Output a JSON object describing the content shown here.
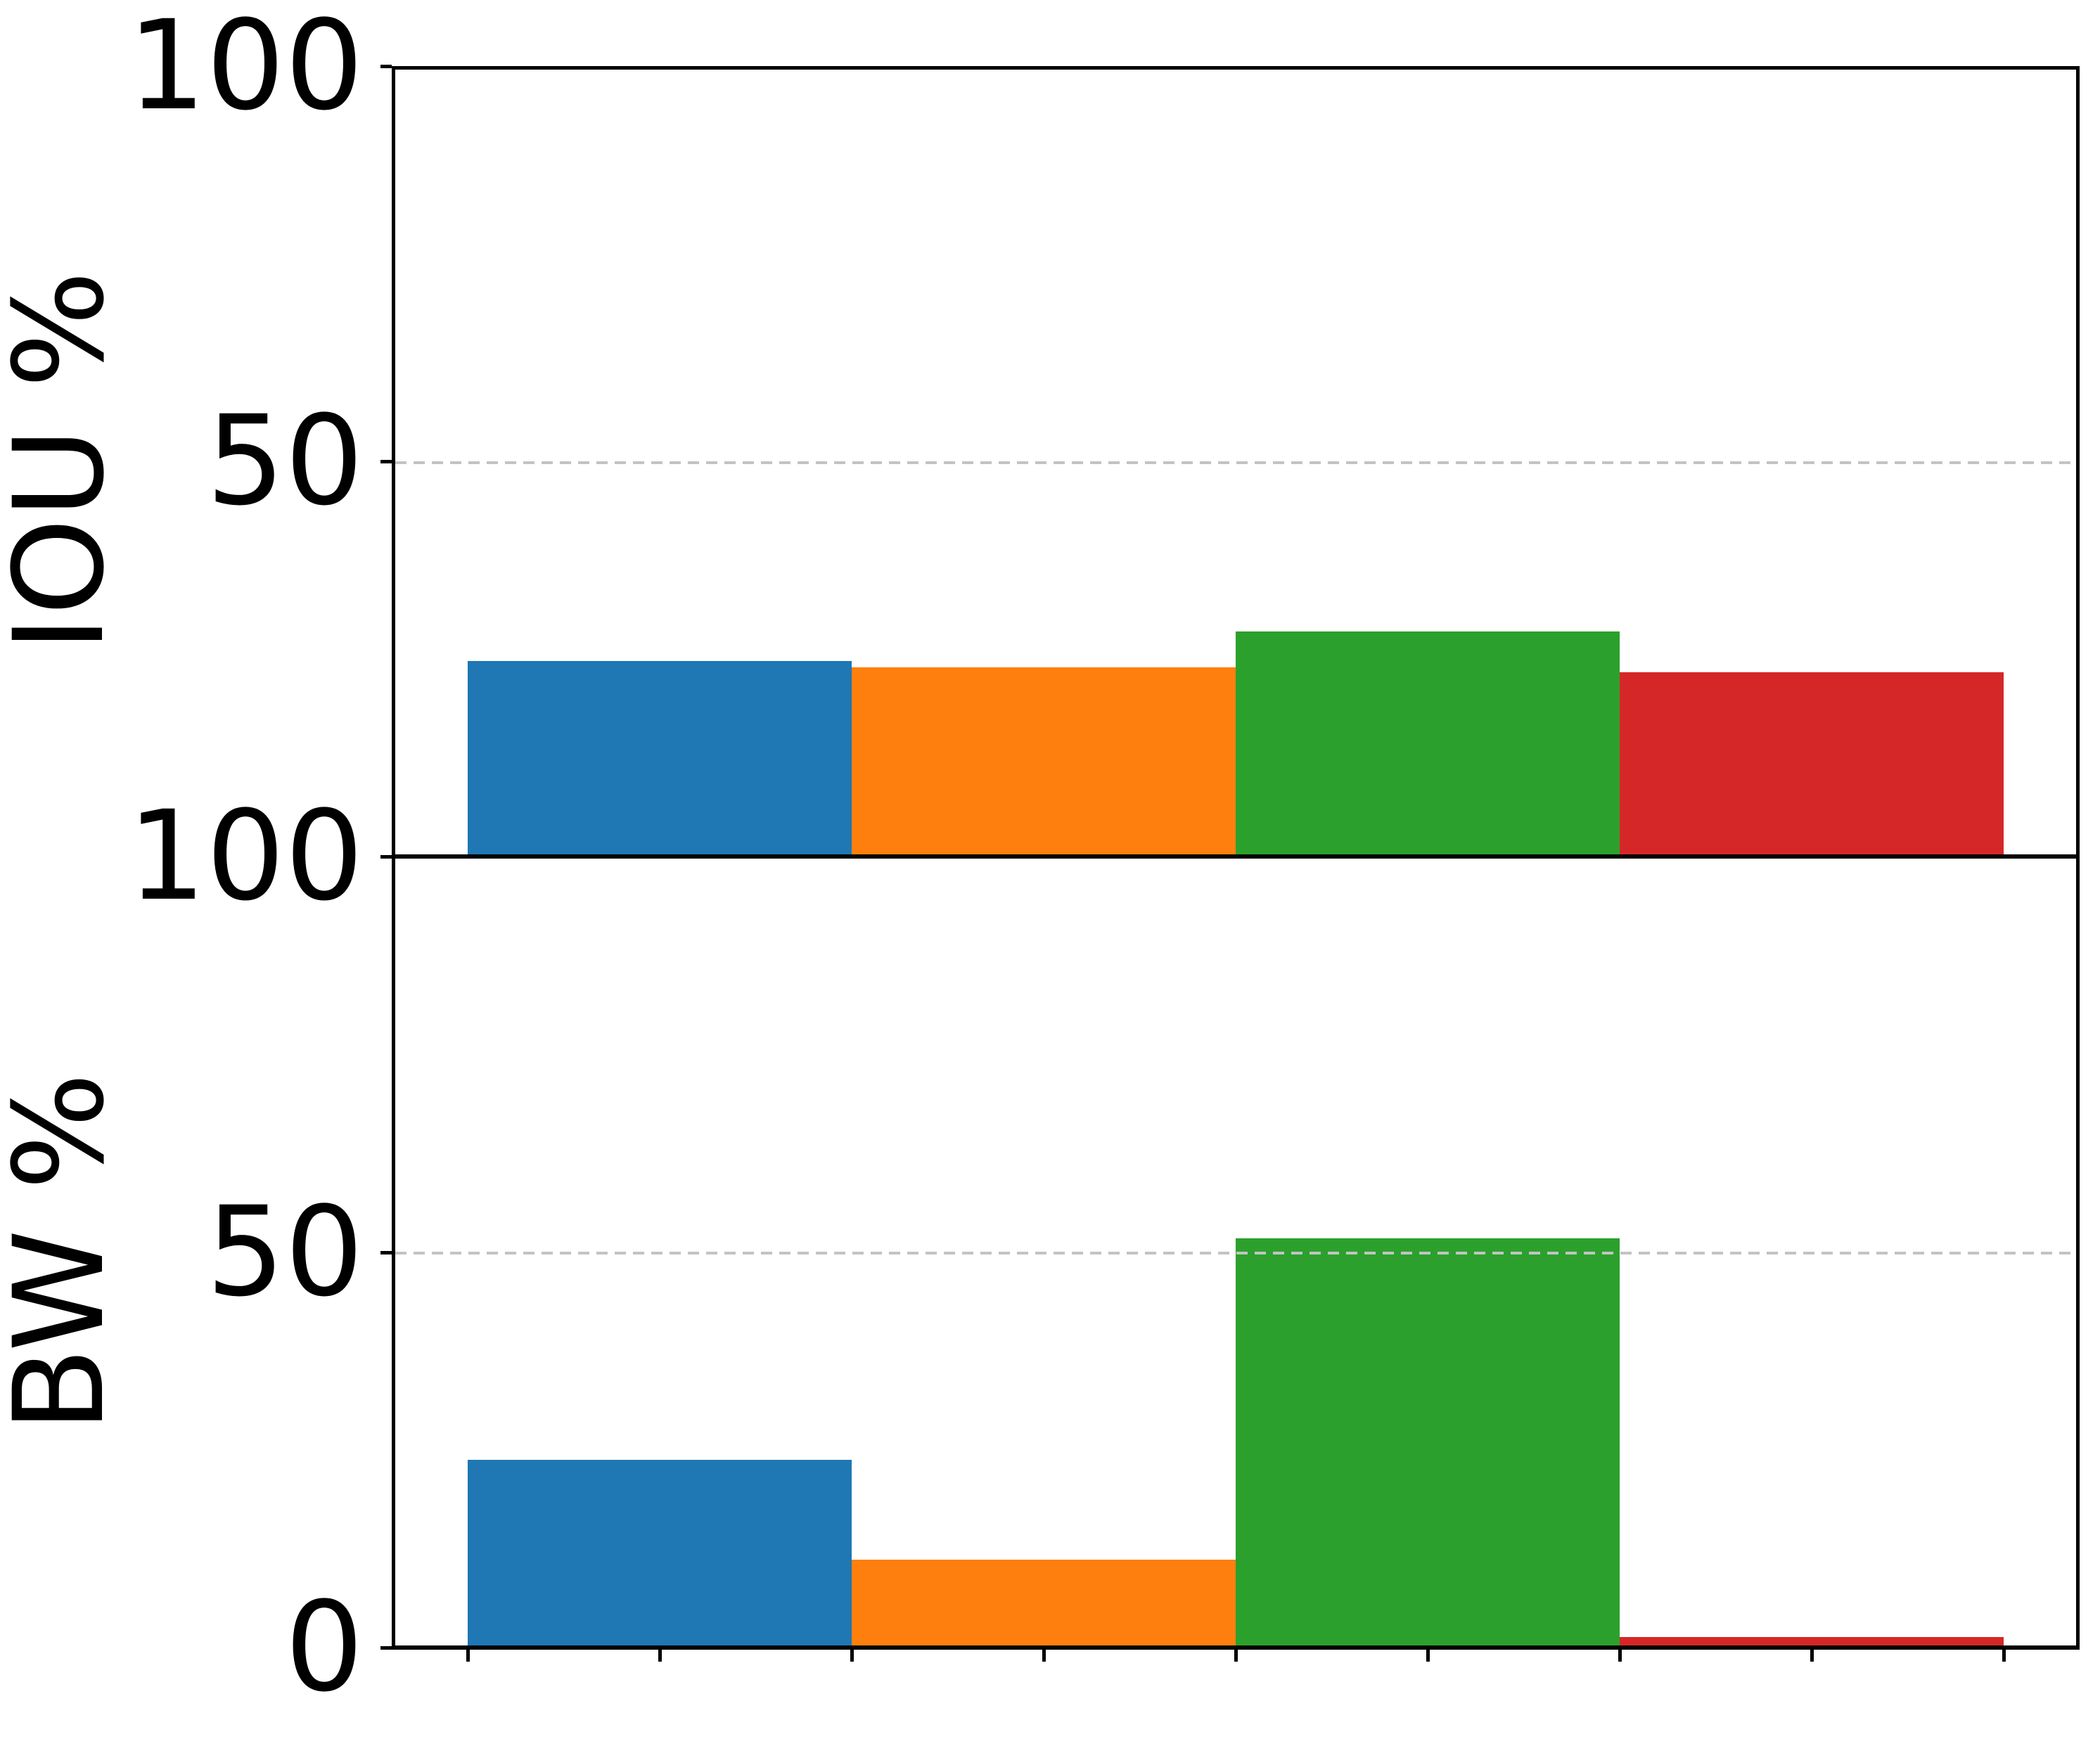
{
  "figure": {
    "background": "#ffffff"
  },
  "chart_data": [
    {
      "type": "bar",
      "ylabel": "IOU %",
      "ylim": [
        0,
        100
      ],
      "yticks": [
        {
          "value": 100,
          "label": "100"
        },
        {
          "value": 50,
          "label": "50"
        }
      ],
      "gridlines": [
        50
      ],
      "grid_style": "dashed",
      "grid_color": "#c3c3c3",
      "values": [
        24.5,
        23.7,
        28.2,
        23.0
      ],
      "bar_colors": [
        "#1f77b4",
        "#ff7f0e",
        "#2ca02c",
        "#d62728"
      ],
      "xtick_labels": [],
      "legend": "none"
    },
    {
      "type": "bar",
      "ylabel": "BW %",
      "ylim": [
        0,
        100
      ],
      "yticks": [
        {
          "value": 100,
          "label": "100"
        },
        {
          "value": 50,
          "label": "50"
        },
        {
          "value": 0,
          "label": "0"
        }
      ],
      "gridlines": [
        50
      ],
      "grid_style": "dashed",
      "grid_color": "#c3c3c3",
      "values": [
        23.5,
        10.8,
        51.5,
        1.1
      ],
      "bar_colors": [
        "#1f77b4",
        "#ff7f0e",
        "#2ca02c",
        "#d62728"
      ],
      "xticks_data_coords": [
        -0.5,
        0,
        0.5,
        1,
        1.5,
        2,
        2.5,
        3,
        3.5
      ],
      "xtick_labels": [],
      "legend": "none"
    }
  ]
}
